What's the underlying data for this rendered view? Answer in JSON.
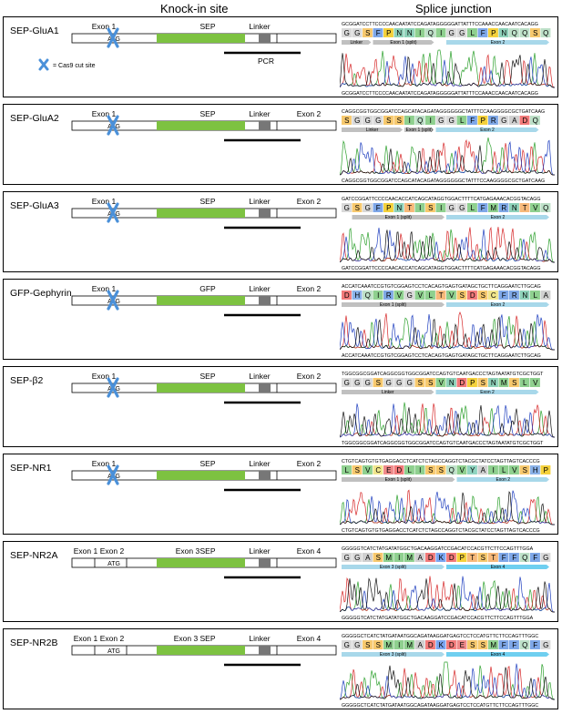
{
  "headers": {
    "knockin": "Knock-in site",
    "splice": "Splice junction"
  },
  "legend": {
    "label": "= Cas9 cut site",
    "pcr": "PCR"
  },
  "colors": {
    "sep": "#7dc241",
    "linker": "#777777",
    "cut": "#4a90d9",
    "exonBar": "#c0c0c0",
    "exonBarBlue": "#a8d8ea",
    "exon2Bar": "#6fcff0"
  },
  "aa_colors": {
    "G": "#d9d9d9",
    "S": "#f7c96e",
    "F": "#7ea7e8",
    "P": "#f4d13b",
    "N": "#8ed1b9",
    "I": "#8fd08f",
    "Q": "#bde0c8",
    "L": "#8fd08f",
    "D": "#f27a7a",
    "H": "#8ab2e8",
    "R": "#7fa8e6",
    "V": "#8fd08f",
    "T": "#f7b97a",
    "C": "#f0e68c",
    "E": "#f08a8a",
    "A": "#d0d0d0",
    "K": "#7aa5f0",
    "M": "#8fd08f",
    "Y": "#8fd4c0",
    "W": "#bcbcbc"
  },
  "panels": [
    {
      "name": "SEP-GluA1",
      "labels": [
        {
          "text": "Exon 1",
          "pos": "first"
        },
        {
          "text": "ATG",
          "pos": "atg"
        },
        {
          "text": "SEP",
          "pos": "tag"
        },
        {
          "text": "Linker",
          "pos": "linker"
        }
      ],
      "show_legend": true,
      "seq_top": "GCGGATCCTTCCCCAACAATATCCAGATAGGGGGATTATTTCCAAACCAACAATCACAGG",
      "aa": "GGSFPNNIQIGGLFPNQQSQ",
      "bars": [
        {
          "label": "Linker",
          "span": [
            0,
            3
          ],
          "style": "gray"
        },
        {
          "label": "Exon 1 (split)",
          "span": [
            3,
            9
          ],
          "style": "gray"
        },
        {
          "label": "Exon 2",
          "span": [
            10,
            20
          ],
          "style": "blue"
        }
      ],
      "seq_bottom": "GCGGATCCTTCCCCAACAATATCCAGATAGGGGGATTATTTCCAAACCAACAATCACAGG"
    },
    {
      "name": "SEP-GluA2",
      "labels": [
        {
          "text": "Exon 1",
          "pos": "first"
        },
        {
          "text": "ATG",
          "pos": "atg"
        },
        {
          "text": "SEP",
          "pos": "tag"
        },
        {
          "text": "Linker",
          "pos": "linker"
        },
        {
          "text": "Exon 2",
          "pos": "last"
        }
      ],
      "show_legend": false,
      "seq_top": "CAGGCGGTGGCGGATCCAGCATACAGATAGGGGGGCTATTTCCAAGGGGCGCTGATCAAG",
      "aa": "SGGGSSIQIGGLFPRGADQ",
      "bars": [
        {
          "label": "Linker",
          "span": [
            0,
            6
          ],
          "style": "gray"
        },
        {
          "label": "Exon 1 (split)",
          "span": [
            6,
            9
          ],
          "style": "gray"
        },
        {
          "label": "Exon 2",
          "span": [
            9,
            19
          ],
          "style": "blue"
        }
      ],
      "seq_bottom": "CAGGCGGTGGCGGATCCAGCATACAGATAGGGGGGCTATTTCCAAGGGGCGCTGATCAAG"
    },
    {
      "name": "SEP-GluA3",
      "labels": [
        {
          "text": "Exon 1",
          "pos": "first"
        },
        {
          "text": "ATG",
          "pos": "atg"
        },
        {
          "text": "SEP",
          "pos": "tag"
        },
        {
          "text": "Linker",
          "pos": "linker"
        },
        {
          "text": "Exon 2",
          "pos": "last"
        }
      ],
      "show_legend": false,
      "seq_top": "GATCCGGATTCCCCAACACCATCAGCATAGGTGGACTTTTCATGAGAAACACGGTACAGG",
      "aa": "GSGFPNTISIGGLFMRNTVQ",
      "bars": [
        {
          "label": "Exon 1 (split)",
          "span": [
            1,
            10
          ],
          "style": "gray"
        },
        {
          "label": "Exon 2",
          "span": [
            10,
            20
          ],
          "style": "blue"
        }
      ],
      "seq_bottom": "GATCCGGATTCCCCAACACCATCAGCATAGGTGGACTTTTCATGAGAAACACGGTACAGG"
    },
    {
      "name": "GFP-Gephyrin",
      "labels": [
        {
          "text": "Exon 1",
          "pos": "first"
        },
        {
          "text": "ATG",
          "pos": "atg"
        },
        {
          "text": "GFP",
          "pos": "tag"
        },
        {
          "text": "Linker",
          "pos": "linker"
        },
        {
          "text": "Exon 2",
          "pos": "last"
        }
      ],
      "show_legend": false,
      "seq_top": "ACCATCAAATCCGTGTCGGAGTCCTCACAGTGAGTGATAGCTGCTTCAGGAATCTTGCAG",
      "aa": "DHQIRVGVLTVSDSCFRNLA",
      "bars": [
        {
          "label": "Exon 1 (split)",
          "span": [
            0,
            10
          ],
          "style": "gray"
        },
        {
          "label": "Exon 2",
          "span": [
            10,
            20
          ],
          "style": "blue"
        }
      ],
      "seq_bottom": "ACCATCAAATCCGTGTCGGAGTCCTCACAGTGAGTGATAGCTGCTTCAGGAATCTTGCAG"
    },
    {
      "name": "SEP-β2",
      "labels": [
        {
          "text": "Exon 1",
          "pos": "first"
        },
        {
          "text": "ATG",
          "pos": "atg"
        },
        {
          "text": "SEP",
          "pos": "tag"
        },
        {
          "text": "Linker",
          "pos": "linker"
        },
        {
          "text": "Exon 2",
          "pos": "last"
        }
      ],
      "show_legend": false,
      "seq_top": "TGGCGGCGGATCAGGCGGTGGCGGATCCAGTGTCAATGACCCTAGTAATATGTCGCTGGT",
      "aa": "GGGSGGGSSVNDPSNMSLV",
      "bars": [
        {
          "label": "Linker",
          "span": [
            0,
            9
          ],
          "style": "gray"
        },
        {
          "label": "Exon 2",
          "span": [
            9,
            19
          ],
          "style": "blue"
        }
      ],
      "seq_bottom": "TGGCGGCGGATCAGGCGGTGGCGGATCCAGTGTCAATGACCCTAGTAATATGTCGCTGGT"
    },
    {
      "name": "SEP-NR1",
      "labels": [
        {
          "text": "Exon 1",
          "pos": "first"
        },
        {
          "text": "ATG",
          "pos": "atg"
        },
        {
          "text": "SEP",
          "pos": "tag"
        },
        {
          "text": "Linker",
          "pos": "linker"
        },
        {
          "text": "Exon 2",
          "pos": "last"
        }
      ],
      "show_legend": false,
      "seq_top": "CTGTCAGTGTGTGAGGACCTCATCTCTAGCCAGGTCTACGCTATCCTAGTTAGTCACCCG",
      "aa": "LSVCEDLISSQVYAILVSHP",
      "bars": [
        {
          "label": "Exon 1 (split)",
          "span": [
            0,
            11
          ],
          "style": "gray"
        },
        {
          "label": "Exon 2",
          "span": [
            11,
            20
          ],
          "style": "blue"
        }
      ],
      "seq_bottom": "CTGTCAGTGTGTGAGGACCTCATCTCTAGCCAGGTCTACGCTATCCTAGTTAGTCACCCG"
    },
    {
      "name": "SEP-NR2A",
      "labels": [
        {
          "text": "Exon 1",
          "pos": "e1"
        },
        {
          "text": "Exon 2",
          "pos": "e2"
        },
        {
          "text": "ATG",
          "pos": "atg"
        },
        {
          "text": "Exon 3",
          "pos": "e3"
        },
        {
          "text": "SEP",
          "pos": "tag"
        },
        {
          "text": "Linker",
          "pos": "linker"
        },
        {
          "text": "Exon 4",
          "pos": "last"
        }
      ],
      "show_legend": false,
      "seq_top": "GGGGGTCATCTATGATATGGCTGACAAGGATCCGACATCCACGTTCTTCCAGTTTGGA",
      "aa": "GGASMIMADKDPTSTFFQFG",
      "bars": [
        {
          "label": "Exon 3 (split)",
          "span": [
            0,
            10
          ],
          "style": "blue"
        },
        {
          "label": "Exon 4",
          "span": [
            10,
            20
          ],
          "style": "blue2"
        }
      ],
      "seq_bottom": "GGGGGTCATCTATGATATGGCTGACAAGGATCCGACATCCACGTTCTTCCAGTTTGGA"
    },
    {
      "name": "SEP-NR2B",
      "labels": [
        {
          "text": "Exon 1",
          "pos": "e1"
        },
        {
          "text": "Exon 2",
          "pos": "e2"
        },
        {
          "text": "ATG",
          "pos": "atg"
        },
        {
          "text": "Exon 3",
          "pos": "e3b"
        },
        {
          "text": "SEP",
          "pos": "tag"
        },
        {
          "text": "Linker",
          "pos": "linker"
        },
        {
          "text": "Exon 4",
          "pos": "last"
        }
      ],
      "show_legend": false,
      "seq_top": "GGGGGCTCATCTATGATAATGGCAGATAAGGATGAGTCCTCCATGTTCTTCCAGTTTGGC",
      "aa": "GGSSMIMADKDESSMFFQFG",
      "bars": [
        {
          "label": "Exon 3 (split)",
          "span": [
            0,
            10
          ],
          "style": "blue"
        },
        {
          "label": "Exon 4",
          "span": [
            10,
            20
          ],
          "style": "blue2"
        }
      ],
      "seq_bottom": "GGGGGCTCATCTATGATAATGGCAGATAAGGATGAGTCCTCCATGTTCTTCCAGTTTGGC"
    }
  ]
}
